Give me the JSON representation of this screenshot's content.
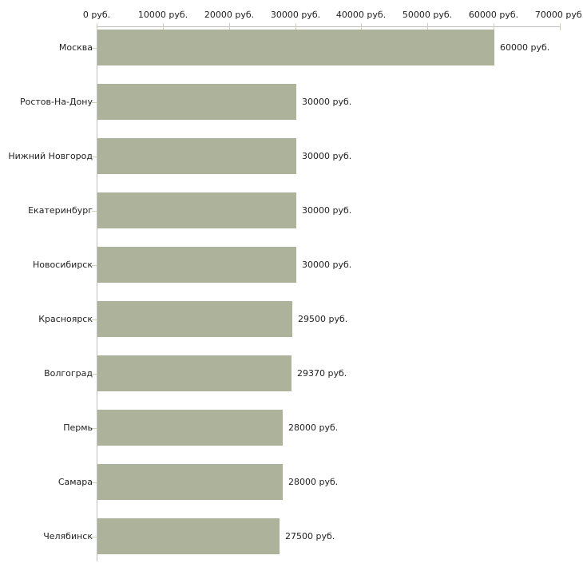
{
  "chart_data": {
    "type": "bar",
    "orientation": "horizontal",
    "title": "",
    "categories": [
      "Москва",
      "Ростов-На-Дону",
      "Нижний Новгород",
      "Екатеринбург",
      "Новосибирск",
      "Красноярск",
      "Волгоград",
      "Пермь",
      "Самара",
      "Челябинск"
    ],
    "values": [
      60000,
      30000,
      30000,
      30000,
      30000,
      29500,
      29370,
      28000,
      28000,
      27500
    ],
    "value_labels": [
      "60000 руб.",
      "30000 руб.",
      "30000 руб.",
      "30000 руб.",
      "30000 руб.",
      "29500 руб.",
      "29370 руб.",
      "28000 руб.",
      "28000 руб.",
      "27500 руб."
    ],
    "unit": "руб.",
    "x_axis": {
      "position": "top",
      "min": 0,
      "max": 70000,
      "tick_step": 10000,
      "tick_labels": [
        "0 руб.",
        "10000 руб.",
        "20000 руб.",
        "30000 руб.",
        "40000 руб.",
        "50000 руб.",
        "60000 руб.",
        "70000 руб."
      ]
    },
    "grid": false,
    "legend": false,
    "colors": {
      "bar": "#adb29a",
      "axis_line": "#c0c0c0",
      "tick_mark": "#cfd0b0",
      "label_text": "#222222",
      "background": "#ffffff"
    }
  }
}
